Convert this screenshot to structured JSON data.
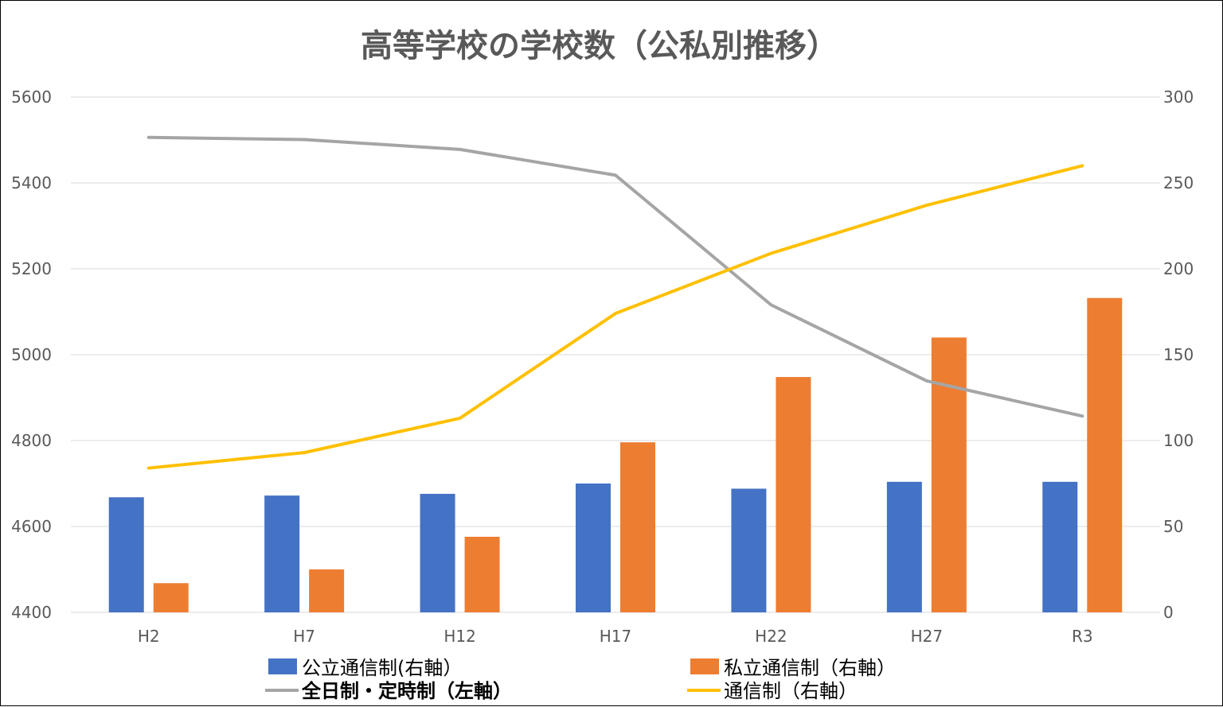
{
  "chart_data": {
    "type": "bar",
    "title": "高等学校の学校数（公私別推移）",
    "categories": [
      "H2",
      "H7",
      "H12",
      "H17",
      "H22",
      "H27",
      "R3"
    ],
    "left_axis": {
      "range": [
        4400,
        5600
      ],
      "ticks": [
        4400,
        4600,
        4800,
        5000,
        5200,
        5400,
        5600
      ]
    },
    "right_axis": {
      "range": [
        0,
        300
      ],
      "ticks": [
        0,
        50,
        100,
        150,
        200,
        250,
        300
      ]
    },
    "grid": true,
    "legend_position": "bottom",
    "series": [
      {
        "name": "公立通信制(右軸）",
        "kind": "bar",
        "axis": "right",
        "color": "#4472C4",
        "values": [
          67,
          68,
          69,
          75,
          72,
          76,
          76
        ]
      },
      {
        "name": "私立通信制（右軸）",
        "kind": "bar",
        "axis": "right",
        "color": "#ED7D31",
        "values": [
          17,
          25,
          44,
          99,
          137,
          160,
          183
        ]
      },
      {
        "name": "全日制・定時制（左軸）",
        "kind": "line",
        "axis": "left",
        "color": "#A5A5A5",
        "values": [
          5506,
          5501,
          5478,
          5418,
          5116,
          4939,
          4857
        ]
      },
      {
        "name": "通信制（右軸）",
        "kind": "line",
        "axis": "right",
        "color": "#FFC000",
        "values": [
          84,
          93,
          113,
          174,
          209,
          237,
          260
        ]
      }
    ]
  }
}
